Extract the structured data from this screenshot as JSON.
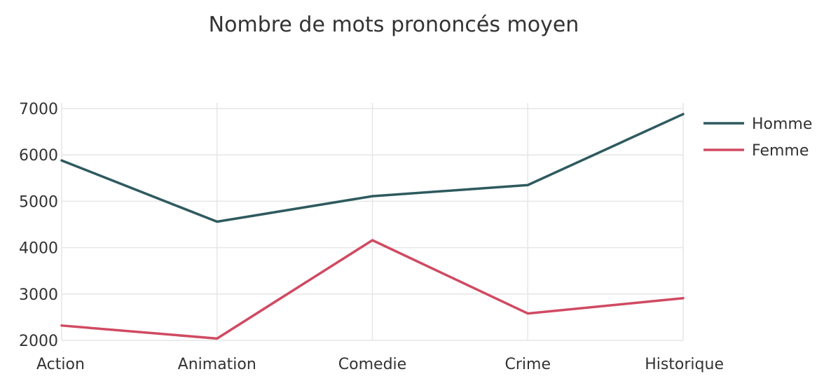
{
  "chart_data": {
    "type": "line",
    "title": "Nombre de mots prononcés moyen",
    "xlabel": "",
    "ylabel": "",
    "categories": [
      "Action",
      "Animation",
      "Comedie",
      "Crime",
      "Historique"
    ],
    "y_ticks": [
      2000,
      3000,
      4000,
      5000,
      6000,
      7000
    ],
    "ylim": [
      2000,
      7000
    ],
    "grid": true,
    "legend_position": "top-right",
    "series": [
      {
        "name": "Homme",
        "color": "#2e5a5e",
        "values": [
          5880,
          4560,
          5110,
          5350,
          6880
        ]
      },
      {
        "name": "Femme",
        "color": "#d04a62",
        "values": [
          2320,
          2040,
          4160,
          2580,
          2910
        ]
      }
    ]
  }
}
